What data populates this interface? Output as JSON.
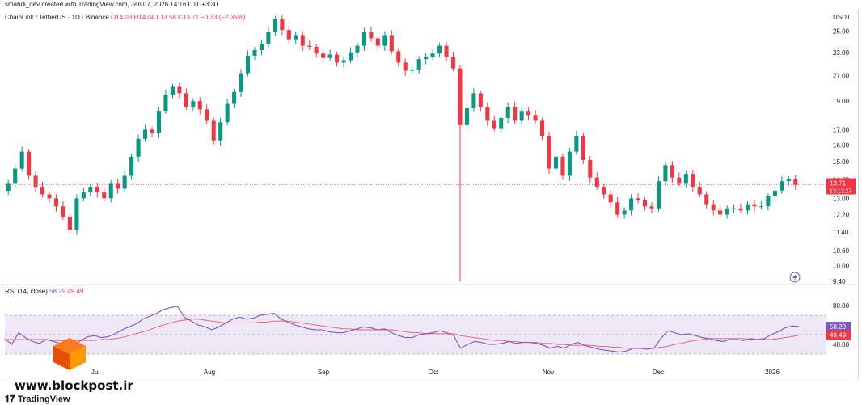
{
  "header": {
    "author_line": "smahdi_dev created with TradingView.com, Jan 07, 2026 14:16 UTC+3:30"
  },
  "legend": {
    "symbol": "ChainLink / TetherUS · 1D · Binance",
    "ohlc": "O14.03 H14.04 L13.58 C13.71 −0.33 (−2.35%)"
  },
  "rsi_legend": {
    "label": "RSI (14, close)",
    "value1": "58.29",
    "value2": "49.49"
  },
  "price_axis": {
    "currency": "USDT",
    "ticks": [
      "25.00",
      "23.00",
      "21.00",
      "19.00",
      "17.00",
      "16.00",
      "15.00",
      "14.00",
      "13.00",
      "12.20",
      "11.40",
      "10.60",
      "10.00",
      "9.40"
    ],
    "last_price": "13.71",
    "countdown": "13:13:27"
  },
  "rsi_axis": {
    "ticks": [
      "80.00",
      "40.00"
    ],
    "rsi_value": "58.29",
    "ma_value": "49.49"
  },
  "time_axis": {
    "labels": [
      "Jul",
      "Aug",
      "Sep",
      "Oct",
      "Nov",
      "Dec",
      "2026"
    ]
  },
  "watermark": {
    "site": "www.blockpost.ir",
    "brand": "TradingView"
  },
  "colors": {
    "up": "#089981",
    "down": "#f23645",
    "rsi_line": "#7e57c2",
    "rsi_ma": "#f23645",
    "rsi_band": "#ede7f6"
  },
  "chart_data": [
    {
      "type": "candlestick",
      "title": "ChainLink / TetherUS · 1D · Binance",
      "ylabel": "USDT",
      "log_scale": true,
      "ylim": [
        9.4,
        27
      ],
      "x_labels": [
        "Jul",
        "Aug",
        "Sep",
        "Oct",
        "Nov",
        "Dec",
        "2026"
      ],
      "last_close": 13.71,
      "path_description": "Close values sampled roughly every 3 days from mid-June 2025 to Jan 07, 2026",
      "closes": [
        13.8,
        14.6,
        15.6,
        14.2,
        13.6,
        13.2,
        13.0,
        12.6,
        12.1,
        11.5,
        13.0,
        13.3,
        13.6,
        13.3,
        13.0,
        13.8,
        13.5,
        14.2,
        15.3,
        16.4,
        17.0,
        16.8,
        18.3,
        19.5,
        20.1,
        19.6,
        18.6,
        19.0,
        18.4,
        17.6,
        16.3,
        17.5,
        18.8,
        19.7,
        21.2,
        22.7,
        23.2,
        23.8,
        24.9,
        26.2,
        25.1,
        24.2,
        24.6,
        23.6,
        23.5,
        22.9,
        22.5,
        22.8,
        22.1,
        22.3,
        23.0,
        23.6,
        24.9,
        24.3,
        23.6,
        24.6,
        23.1,
        22.1,
        21.4,
        21.5,
        22.4,
        22.6,
        22.9,
        23.6,
        22.6,
        21.6,
        17.3,
        18.5,
        19.6,
        18.6,
        17.6,
        17.1,
        17.8,
        18.6,
        17.6,
        18.3,
        18.0,
        17.6,
        16.6,
        14.6,
        15.3,
        14.2,
        15.6,
        16.6,
        15.1,
        14.1,
        13.6,
        13.2,
        12.8,
        12.2,
        12.4,
        13.0,
        12.9,
        12.6,
        12.5,
        13.9,
        14.8,
        14.1,
        13.8,
        14.3,
        13.6,
        13.2,
        12.7,
        12.4,
        12.2,
        12.5,
        12.5,
        12.4,
        12.7,
        12.6,
        12.6,
        13.1,
        13.4,
        13.9,
        14.0,
        13.71
      ]
    },
    {
      "type": "line",
      "title": "RSI (14, close)",
      "ylim": [
        20,
        90
      ],
      "reference_lines": [
        70,
        50,
        30
      ],
      "series": [
        {
          "name": "RSI",
          "values": [
            46,
            40,
            52,
            47,
            43,
            41,
            45,
            43,
            41,
            37,
            39,
            44,
            48,
            49,
            47,
            48,
            51,
            55,
            58,
            61,
            66,
            69,
            72,
            76,
            78,
            79,
            68,
            64,
            60,
            58,
            55,
            58,
            62,
            66,
            68,
            66,
            67,
            70,
            71,
            72,
            66,
            63,
            60,
            58,
            56,
            55,
            55,
            53,
            52,
            52,
            54,
            56,
            58,
            57,
            55,
            56,
            52,
            49,
            47,
            47,
            50,
            51,
            52,
            54,
            52,
            49,
            36,
            40,
            43,
            42,
            40,
            40,
            41,
            43,
            41,
            42,
            42,
            41,
            39,
            36,
            38,
            36,
            40,
            42,
            39,
            37,
            35,
            34,
            33,
            32,
            33,
            36,
            36,
            35,
            36,
            46,
            54,
            52,
            50,
            51,
            49,
            47,
            46,
            44,
            43,
            45,
            45,
            44,
            46,
            45,
            46,
            50,
            53,
            57,
            59,
            58.29
          ]
        },
        {
          "name": "RSI-based MA",
          "values": [
            45,
            45,
            45,
            45,
            45,
            45,
            45,
            44,
            44,
            44,
            44,
            44,
            44,
            44,
            45,
            45,
            46,
            47,
            49,
            51,
            53,
            55,
            58,
            60,
            62,
            64,
            65,
            66,
            66,
            65,
            64,
            63,
            62,
            62,
            62,
            62,
            62,
            63,
            63,
            64,
            64,
            64,
            63,
            62,
            61,
            60,
            59,
            58,
            57,
            56,
            56,
            55,
            55,
            55,
            55,
            55,
            55,
            54,
            53,
            52,
            52,
            51,
            51,
            51,
            51,
            51,
            49,
            48,
            47,
            46,
            45,
            44,
            44,
            43,
            43,
            42,
            42,
            42,
            41,
            41,
            40,
            40,
            39,
            39,
            39,
            39,
            38,
            38,
            37,
            37,
            36,
            36,
            36,
            36,
            36,
            37,
            38,
            40,
            41,
            43,
            44,
            45,
            46,
            46,
            46,
            46,
            46,
            46,
            45,
            45,
            45,
            45,
            46,
            47,
            48,
            49.49
          ]
        }
      ]
    }
  ]
}
